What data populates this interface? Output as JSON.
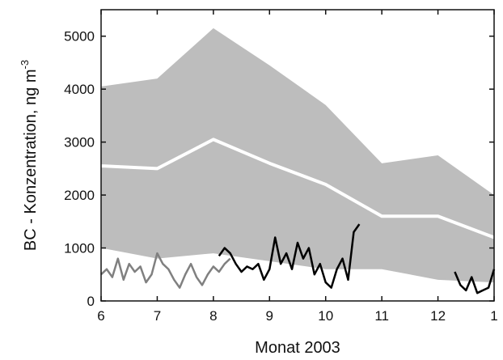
{
  "chart_data": {
    "type": "band-line",
    "xlabel": "Monat 2003",
    "ylabel": "BC - Konzentration,  ng m",
    "ylabel_sup": "-3",
    "xlim": [
      6,
      13
    ],
    "xticks": [
      6,
      7,
      8,
      9,
      10,
      11,
      12,
      {
        "value": 13,
        "label": "1"
      }
    ],
    "ylim": [
      0,
      5500
    ],
    "yticks": [
      0,
      1000,
      2000,
      3000,
      4000,
      5000
    ],
    "band": {
      "color": "#bdbdbd",
      "x": [
        6,
        7,
        8,
        9,
        10,
        11,
        12,
        13
      ],
      "lower": [
        1000,
        800,
        900,
        750,
        600,
        600,
        400,
        350
      ],
      "upper": [
        4050,
        4200,
        5150,
        4450,
        3700,
        2600,
        2750,
        2000
      ]
    },
    "series": [
      {
        "color": "#ffffff",
        "width": 4,
        "x": [
          6,
          7,
          8,
          9,
          10,
          11,
          12,
          13
        ],
        "values": [
          2550,
          2500,
          3050,
          2600,
          2200,
          1600,
          1600,
          1200
        ]
      },
      {
        "color": "#808080",
        "width": 2.5,
        "x": [
          6.0,
          6.1,
          6.2,
          6.3,
          6.4,
          6.5,
          6.6,
          6.7,
          6.8,
          6.9,
          7.0,
          7.1,
          7.2,
          7.3,
          7.4,
          7.5,
          7.6,
          7.7,
          7.8,
          7.9,
          8.0,
          8.1,
          8.2,
          8.3
        ],
        "values": [
          500,
          600,
          450,
          800,
          400,
          700,
          550,
          650,
          350,
          500,
          900,
          700,
          600,
          400,
          250,
          500,
          700,
          450,
          300,
          500,
          650,
          550,
          700,
          800
        ]
      },
      {
        "color": "#000000",
        "width": 2.5,
        "x": [
          8.1,
          8.2,
          8.3,
          8.4,
          8.5,
          8.6,
          8.7,
          8.8,
          8.9,
          9.0,
          9.1,
          9.2,
          9.3,
          9.4,
          9.5,
          9.6,
          9.7,
          9.8,
          9.9,
          10.0,
          10.1,
          10.2,
          10.3,
          10.4,
          10.5,
          10.6,
          11,
          12.3,
          12.4,
          12.5,
          12.6,
          12.7,
          12.8,
          12.9,
          13.0
        ],
        "values": [
          850,
          1000,
          900,
          700,
          550,
          650,
          600,
          700,
          400,
          600,
          1200,
          700,
          900,
          600,
          1100,
          800,
          1000,
          500,
          700,
          350,
          250,
          600,
          800,
          400,
          1300,
          1450,
          null,
          550,
          300,
          200,
          450,
          150,
          200,
          250,
          600
        ]
      }
    ]
  }
}
